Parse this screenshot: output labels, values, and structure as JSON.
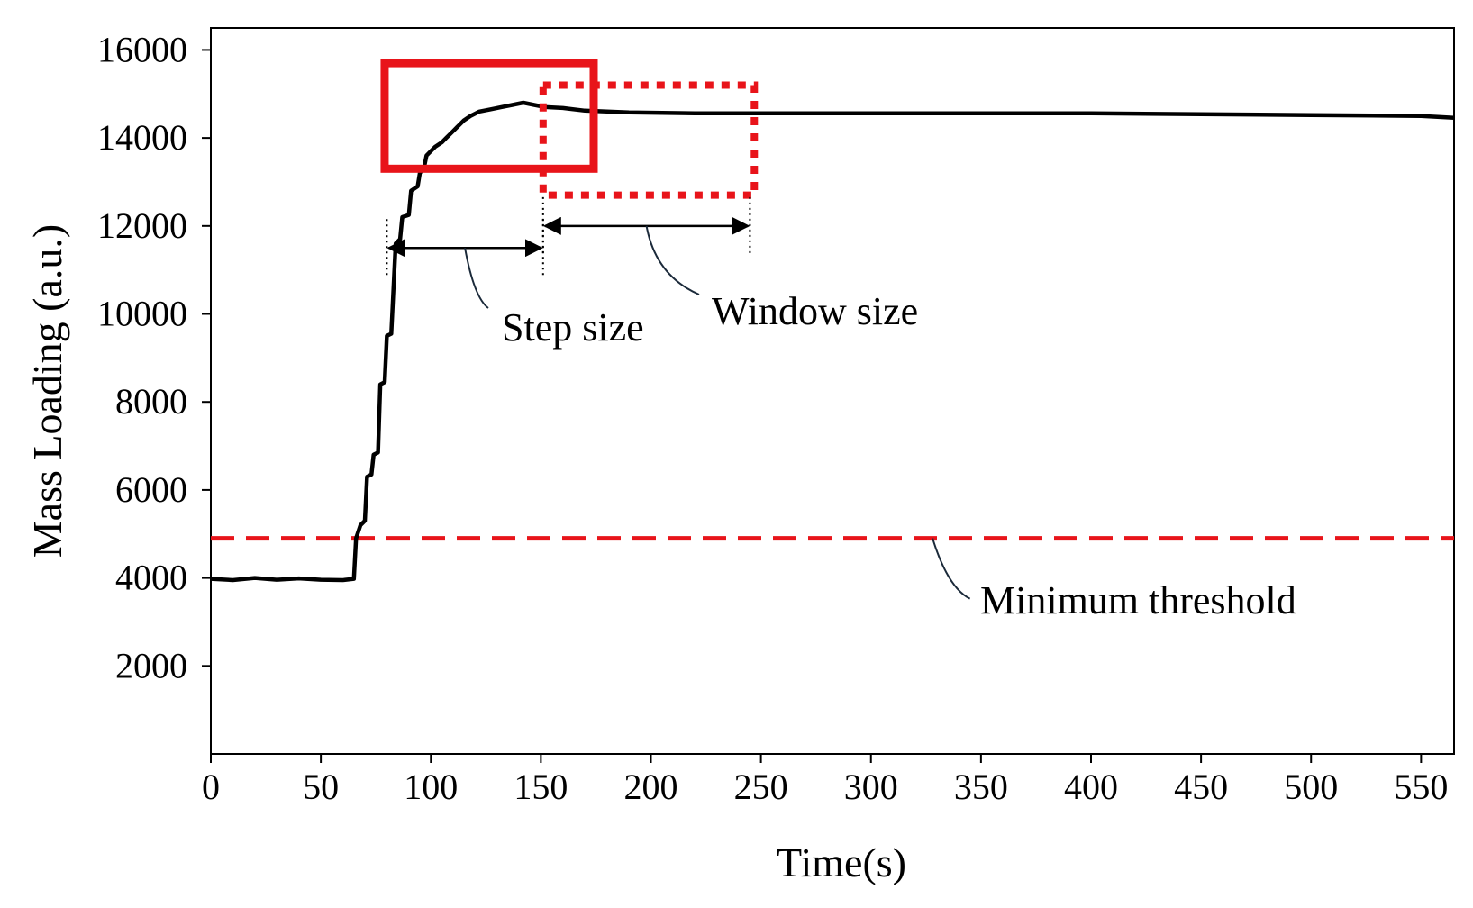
{
  "chart_data": {
    "type": "line",
    "xlabel": "Time(s)",
    "ylabel": "Mass Loading (a.u.)",
    "xlim": [
      0,
      565
    ],
    "ylim": [
      0,
      16500
    ],
    "x_ticks": [
      0,
      50,
      100,
      150,
      200,
      250,
      300,
      350,
      400,
      450,
      500,
      550
    ],
    "y_ticks": [
      2000,
      4000,
      6000,
      8000,
      10000,
      12000,
      14000,
      16000
    ],
    "grid": false,
    "series": [
      {
        "color": "#000000",
        "points": [
          [
            0,
            3980
          ],
          [
            10,
            3950
          ],
          [
            20,
            4000
          ],
          [
            30,
            3960
          ],
          [
            40,
            3990
          ],
          [
            50,
            3960
          ],
          [
            60,
            3950
          ],
          [
            65,
            3980
          ],
          [
            66,
            4900
          ],
          [
            68,
            5200
          ],
          [
            70,
            5300
          ],
          [
            71,
            6300
          ],
          [
            73,
            6350
          ],
          [
            74,
            6800
          ],
          [
            76,
            6850
          ],
          [
            77,
            8400
          ],
          [
            79,
            8450
          ],
          [
            80,
            9500
          ],
          [
            82,
            9550
          ],
          [
            84,
            11600
          ],
          [
            86,
            11700
          ],
          [
            87,
            12200
          ],
          [
            90,
            12250
          ],
          [
            91,
            12800
          ],
          [
            94,
            12900
          ],
          [
            95,
            13200
          ],
          [
            97,
            13350
          ],
          [
            98,
            13600
          ],
          [
            100,
            13700
          ],
          [
            102,
            13800
          ],
          [
            105,
            13900
          ],
          [
            107,
            14000
          ],
          [
            110,
            14150
          ],
          [
            112,
            14250
          ],
          [
            115,
            14400
          ],
          [
            118,
            14500
          ],
          [
            122,
            14600
          ],
          [
            127,
            14650
          ],
          [
            132,
            14700
          ],
          [
            137,
            14750
          ],
          [
            142,
            14800
          ],
          [
            147,
            14750
          ],
          [
            152,
            14700
          ],
          [
            160,
            14680
          ],
          [
            170,
            14620
          ],
          [
            190,
            14580
          ],
          [
            220,
            14560
          ],
          [
            260,
            14560
          ],
          [
            300,
            14560
          ],
          [
            350,
            14560
          ],
          [
            400,
            14560
          ],
          [
            450,
            14540
          ],
          [
            500,
            14520
          ],
          [
            550,
            14500
          ],
          [
            565,
            14460
          ]
        ]
      }
    ],
    "threshold": {
      "value": 4900,
      "color": "#e8141a",
      "label": "Minimum threshold"
    },
    "step_box": {
      "x": [
        79,
        174
      ],
      "y": [
        13300,
        15700
      ],
      "color": "#e8141a",
      "style": "solid"
    },
    "window_box": {
      "x": [
        151,
        247
      ],
      "y": [
        12700,
        15200
      ],
      "color": "#e8141a",
      "style": "dotted"
    },
    "step_arrow": {
      "x": [
        80,
        151
      ],
      "y": 11500,
      "label": "Step size"
    },
    "window_arrow": {
      "x": [
        151,
        245
      ],
      "y": 12000,
      "label": "Window size"
    }
  }
}
